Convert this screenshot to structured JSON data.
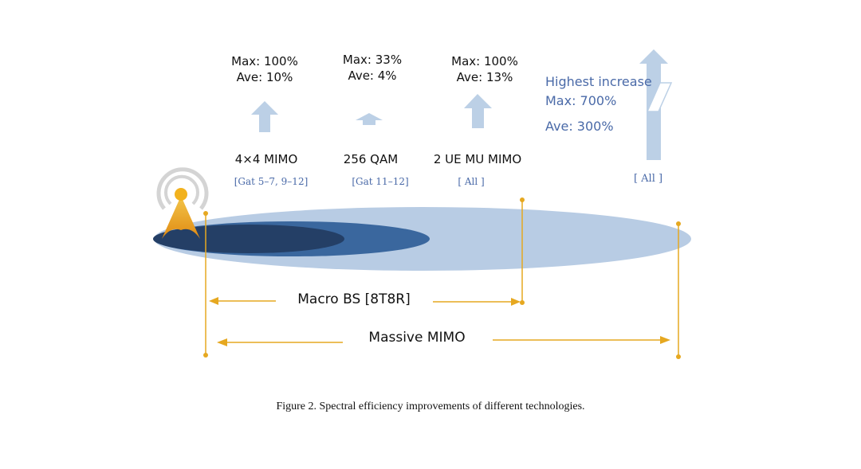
{
  "techs": [
    {
      "max": "Max: 100%",
      "ave": "Ave: 10%",
      "name": "4×4 MIMO",
      "tag": "[Gat 5–7, 9–12]"
    },
    {
      "max": "Max: 33%",
      "ave": "Ave: 4%",
      "name": "256 QAM",
      "tag": "[Gat 11–12]"
    },
    {
      "max": "Max: 100%",
      "ave": "Ave: 13%",
      "name": "2 UE MU MIMO",
      "tag": "[ All ]"
    }
  ],
  "massive": {
    "title": "Highest increase",
    "max": "Max: 700%",
    "ave": "Ave: 300%",
    "tag": "[ All ]"
  },
  "ranges": {
    "macro": "Macro BS [8T8R]",
    "massive": "Massive MIMO"
  },
  "caption": "Figure 2. Spectral efficiency improvements of different technologies.",
  "colors": {
    "arrow": "#bcd0e6",
    "outer_ellipse": "#b8cce4",
    "mid_ellipse": "#3a679e",
    "inner_ellipse": "#243f66",
    "accent": "#e6a820",
    "label_blue": "#4a6aa8"
  },
  "icons": [
    "base-station-icon",
    "up-arrow-icon",
    "double-arrow-icon"
  ]
}
